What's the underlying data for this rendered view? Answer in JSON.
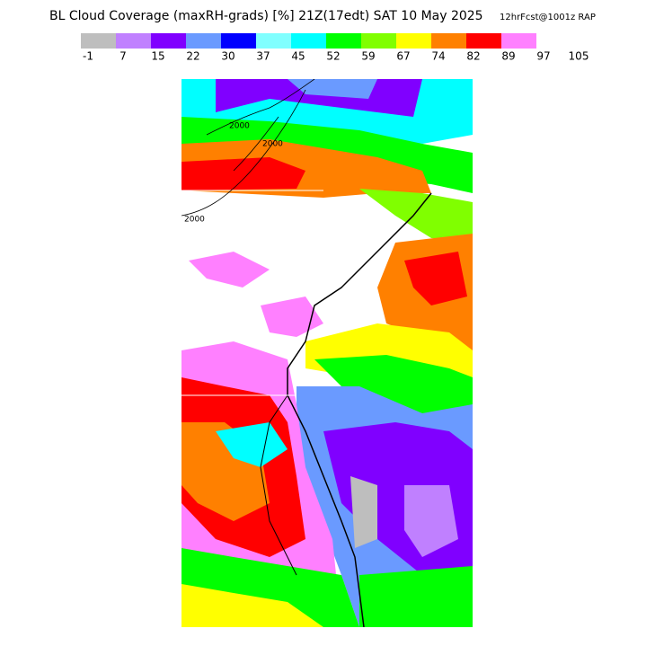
{
  "header": {
    "title": "BL Cloud Coverage (maxRH-grads) [%] 21Z(17edt) SAT 10 May 2025",
    "subtitle": "12hrFcst@1001z RAP"
  },
  "colorbar": {
    "colors": [
      "#bebebe",
      "#c080ff",
      "#8000ff",
      "#6a9aff",
      "#0000ff",
      "#80ffff",
      "#00ffff",
      "#00ff00",
      "#80ff00",
      "#ffff00",
      "#ff8000",
      "#ff0000",
      "#ff80ff",
      "#ffffff"
    ],
    "labels": [
      "-1",
      "7",
      "15",
      "22",
      "30",
      "37",
      "45",
      "52",
      "59",
      "67",
      "74",
      "82",
      "89",
      "97",
      "105"
    ]
  },
  "map": {
    "contour_labels": [
      "2000",
      "2000",
      "2000"
    ]
  }
}
